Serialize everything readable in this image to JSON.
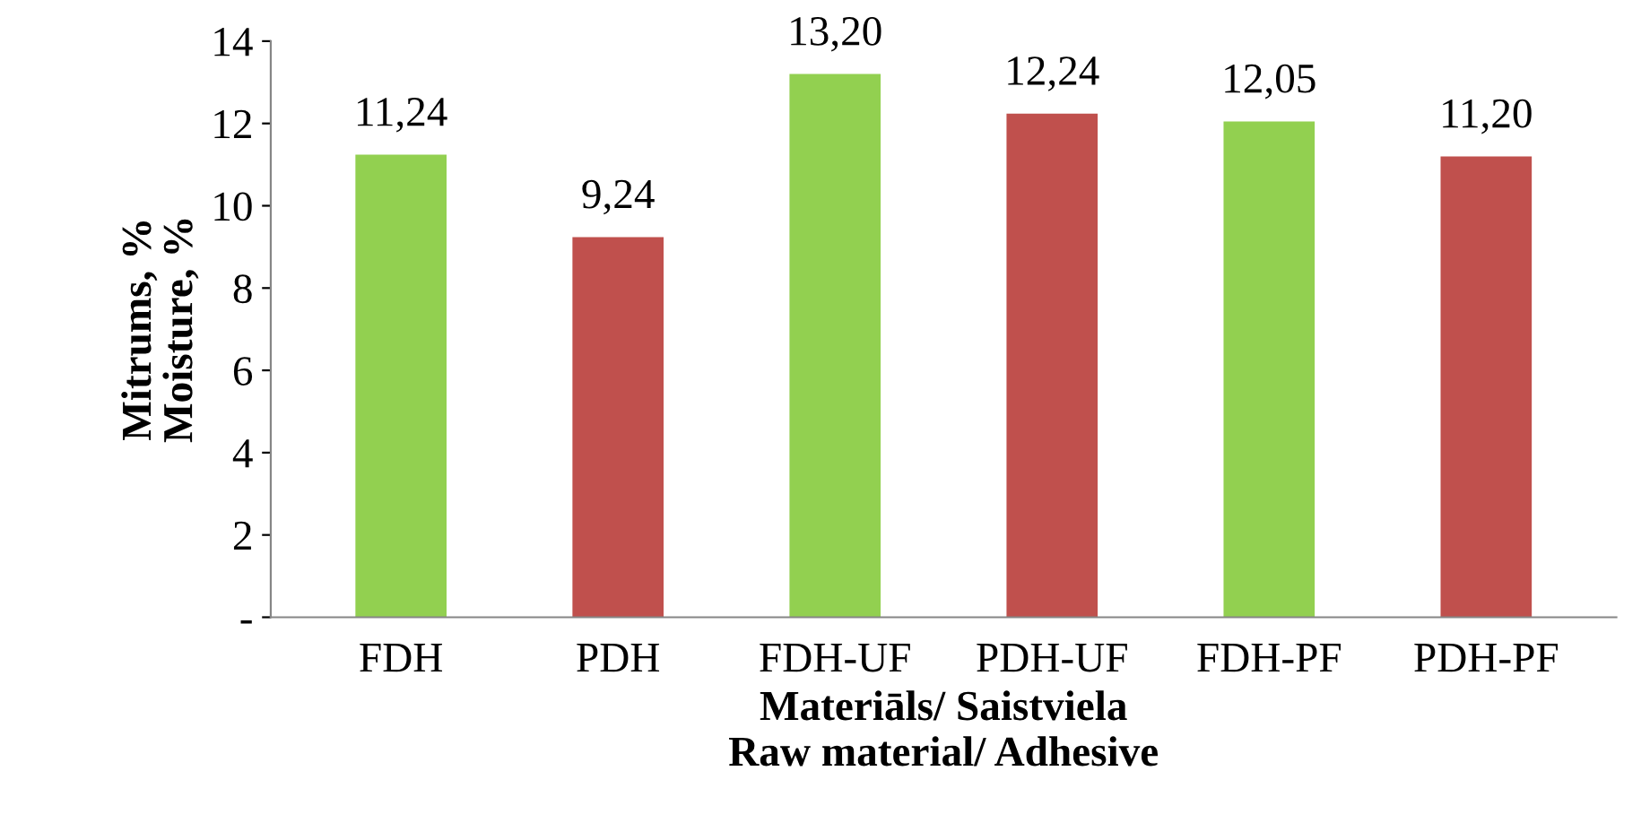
{
  "chart_data": {
    "type": "bar",
    "categories": [
      "FDH",
      "PDH",
      "FDH-UF",
      "PDH-UF",
      "FDH-PF",
      "PDH-PF"
    ],
    "values": [
      11.24,
      9.24,
      13.2,
      12.24,
      12.05,
      11.2
    ],
    "value_labels": [
      "11,24",
      "9,24",
      "13,20",
      "12,24",
      "12,05",
      "11,20"
    ],
    "colors": [
      "#92d050",
      "#c0504d",
      "#92d050",
      "#c0504d",
      "#92d050",
      "#c0504d"
    ],
    "xlabel": "Materiāls/ Saistviela\nRaw material/ Adhesive",
    "ylabel": "Mitrums, %\nMoisture, %",
    "ylim": [
      0,
      14
    ],
    "yticks": [
      {
        "value": 0,
        "label": "-"
      },
      2,
      4,
      6,
      8,
      10,
      12,
      14
    ],
    "grid": false,
    "legend": false
  }
}
